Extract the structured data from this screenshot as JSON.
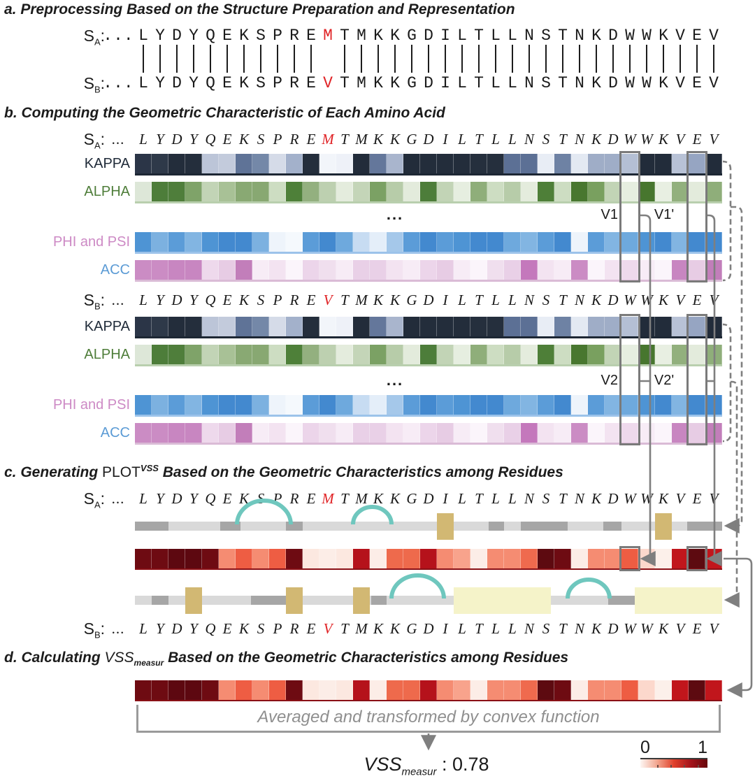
{
  "colors": {
    "teal": "#6fc7be",
    "tan": "#d2b873",
    "yellow": "#f5f3c9",
    "track": "#d9d9d9",
    "track_dark": "#a6a6a6",
    "connector": "#7f7f7f",
    "box": "#7a7a7a",
    "bracket": "#9a9a9a",
    "graytext": "#8f8f8f",
    "pipe": "#1c1c1c"
  },
  "titles": {
    "a": "a. Preprocessing Based on the Structure Preparation and Representation",
    "b": "b. Computing the Geometric Characteristic of Each Amino Acid",
    "c_pre": "c. Generating ",
    "c_plot": "PLOT",
    "c_sup": "VSS",
    "c_post": " Based on the Geometric Characteristics among Residues",
    "d_pre": "d. Calculating ",
    "d_vss": "VSS",
    "d_sub": "measur",
    "d_post": " Based on the Geometric Characteristics among Residues"
  },
  "sequences": {
    "label_s": "S",
    "sub_a": "A",
    "sub_b": "B",
    "colon": ":",
    "ellipsis": "...",
    "sa": "LYDYQEKSPREMTMKKGDILTLLNSTNKDWWKVEV",
    "sb": "LYDYQEKSPREVTMKKGDILTLLNSTNKDWWKVEV",
    "highlight_index": 11,
    "highlight_color": "#e02427"
  },
  "markers": {
    "ellipsis": "...",
    "v1": "V1",
    "v1_prime": "V1'",
    "v2": "V2",
    "v2_prime": "V2'"
  },
  "bars": {
    "kappa": {
      "label": "KAPPA",
      "label_color": "#202b39",
      "cells": [
        "#2b3547",
        "#2e3949",
        "#232d3b",
        "#242e3c",
        "#bcc5d8",
        "#c3cbdc",
        "#5f7397",
        "#7488a8",
        "#d5dbe8",
        "#a3b1cb",
        "#242e3c",
        "#f2f5fa",
        "#eef1f8",
        "#222c3a",
        "#64779b",
        "#a9b5cd",
        "#222c3a",
        "#232d3b",
        "#232d3b",
        "#232d3b",
        "#252f3d",
        "#252f3d",
        "#5c7095",
        "#5c7095",
        "#e8edf5",
        "#6e82a4",
        "#e3e9f2",
        "#9fadc7",
        "#9fadc7",
        "#b4bfd4",
        "#222c3a",
        "#222c3a",
        "#b8c2d6",
        "#96a5c2",
        "#222c3a"
      ]
    },
    "alpha": {
      "label": "ALPHA",
      "label_color": "#4e7d39",
      "cells": [
        "#dde7d8",
        "#4d7d3a",
        "#4f7e3b",
        "#7fa369",
        "#c2d4b6",
        "#a8c196",
        "#89a973",
        "#88a872",
        "#cdddc2",
        "#4e8039",
        "#93b07f",
        "#bdd0b0",
        "#e4ecdd",
        "#c4d5b8",
        "#7ba164",
        "#b7cca9",
        "#e3ebdc",
        "#4d7d3a",
        "#c2d4b6",
        "#e6eee0",
        "#8fae7a",
        "#cdddc2",
        "#b7cca9",
        "#e4ecdd",
        "#4e7f38",
        "#cdddc2",
        "#48772f",
        "#79a05f",
        "#c2d4b6",
        "#e6eee0",
        "#47762e",
        "#e8efe2",
        "#92b07d",
        "#e3ebdc",
        "#8fae7a"
      ]
    },
    "phipsi": {
      "label": "PHI and PSI",
      "label_color": "#cd8ac5",
      "cells": [
        "#4e94d4",
        "#7cb1e0",
        "#5b9cd8",
        "#82b5e2",
        "#4e94d4",
        "#4389cf",
        "#4389cf",
        "#7cb1e0",
        "#eef4fb",
        "#f5f9fd",
        "#5b9cd8",
        "#4389cf",
        "#6ea9dd",
        "#c7dcf2",
        "#e4eef9",
        "#a5c8ea",
        "#5b9cd8",
        "#4389cf",
        "#5b9cd8",
        "#4e94d4",
        "#4389cf",
        "#4389cf",
        "#6ea9dd",
        "#82b5e2",
        "#5b9cd8",
        "#4389cf",
        "#eef4fb",
        "#5b9cd8",
        "#82b5e2",
        "#6ea9dd",
        "#4e94d4",
        "#4389cf",
        "#82b5e2",
        "#4389cf",
        "#4389cf"
      ]
    },
    "acc": {
      "label": "ACC",
      "label_color": "#5b9bd5",
      "cells": [
        "#cb8cc4",
        "#cb8cc4",
        "#c886c1",
        "#c886c1",
        "#eed9ec",
        "#e7cce4",
        "#c27eba",
        "#f7ecf6",
        "#f3e3f1",
        "#fbf5fb",
        "#ecd5ea",
        "#f0dfee",
        "#f7ecf6",
        "#e9d0e7",
        "#e9d0e7",
        "#f3e3f1",
        "#f7ecf6",
        "#ecd5ea",
        "#e7cce4",
        "#f7ecf6",
        "#fbf5fb",
        "#f0dfee",
        "#e9d0e7",
        "#c478bc",
        "#f3e3f1",
        "#f7ecf6",
        "#cb8cc4",
        "#fbf5fb",
        "#f3e3f1",
        "#eed9ec",
        "#f7ecf6",
        "#fbf5fb",
        "#c886c1",
        "#e7cce4",
        "#c27eba"
      ]
    },
    "vss": {
      "label": "PLOT-VSS heatmap",
      "boxed": [
        29,
        33
      ],
      "cells": [
        "#6e0b12",
        "#6e0b12",
        "#5d0810",
        "#5d0810",
        "#6e0b12",
        "#f58c72",
        "#ee5d43",
        "#f58c72",
        "#ee5d43",
        "#6e0b12",
        "#fce8e0",
        "#fcede7",
        "#fce8e0",
        "#b5121b",
        "#fcede7",
        "#ee6a4c",
        "#ee6a4c",
        "#b5121b",
        "#f58c72",
        "#f8a38c",
        "#fcede7",
        "#f58c72",
        "#f58c72",
        "#ef6a4e",
        "#5d0a10",
        "#6e0b12",
        "#fcede7",
        "#f58c72",
        "#f58c72",
        "#ee5d43",
        "#fcd8cc",
        "#fcf0ea",
        "#c1161c",
        "#5d0a10",
        "#c1161c"
      ]
    }
  },
  "footer": {
    "bracket_text": "Averaged and transformed by convex function",
    "result_label": "VSS",
    "result_sub": "measur",
    "result_rest": " : 0.78"
  },
  "colorbar": {
    "min_label": "0",
    "max_label": "1",
    "gradient": [
      "#fdf6f3",
      "#f2a68f",
      "#e0402b",
      "#a5131a",
      "#67070c"
    ]
  }
}
